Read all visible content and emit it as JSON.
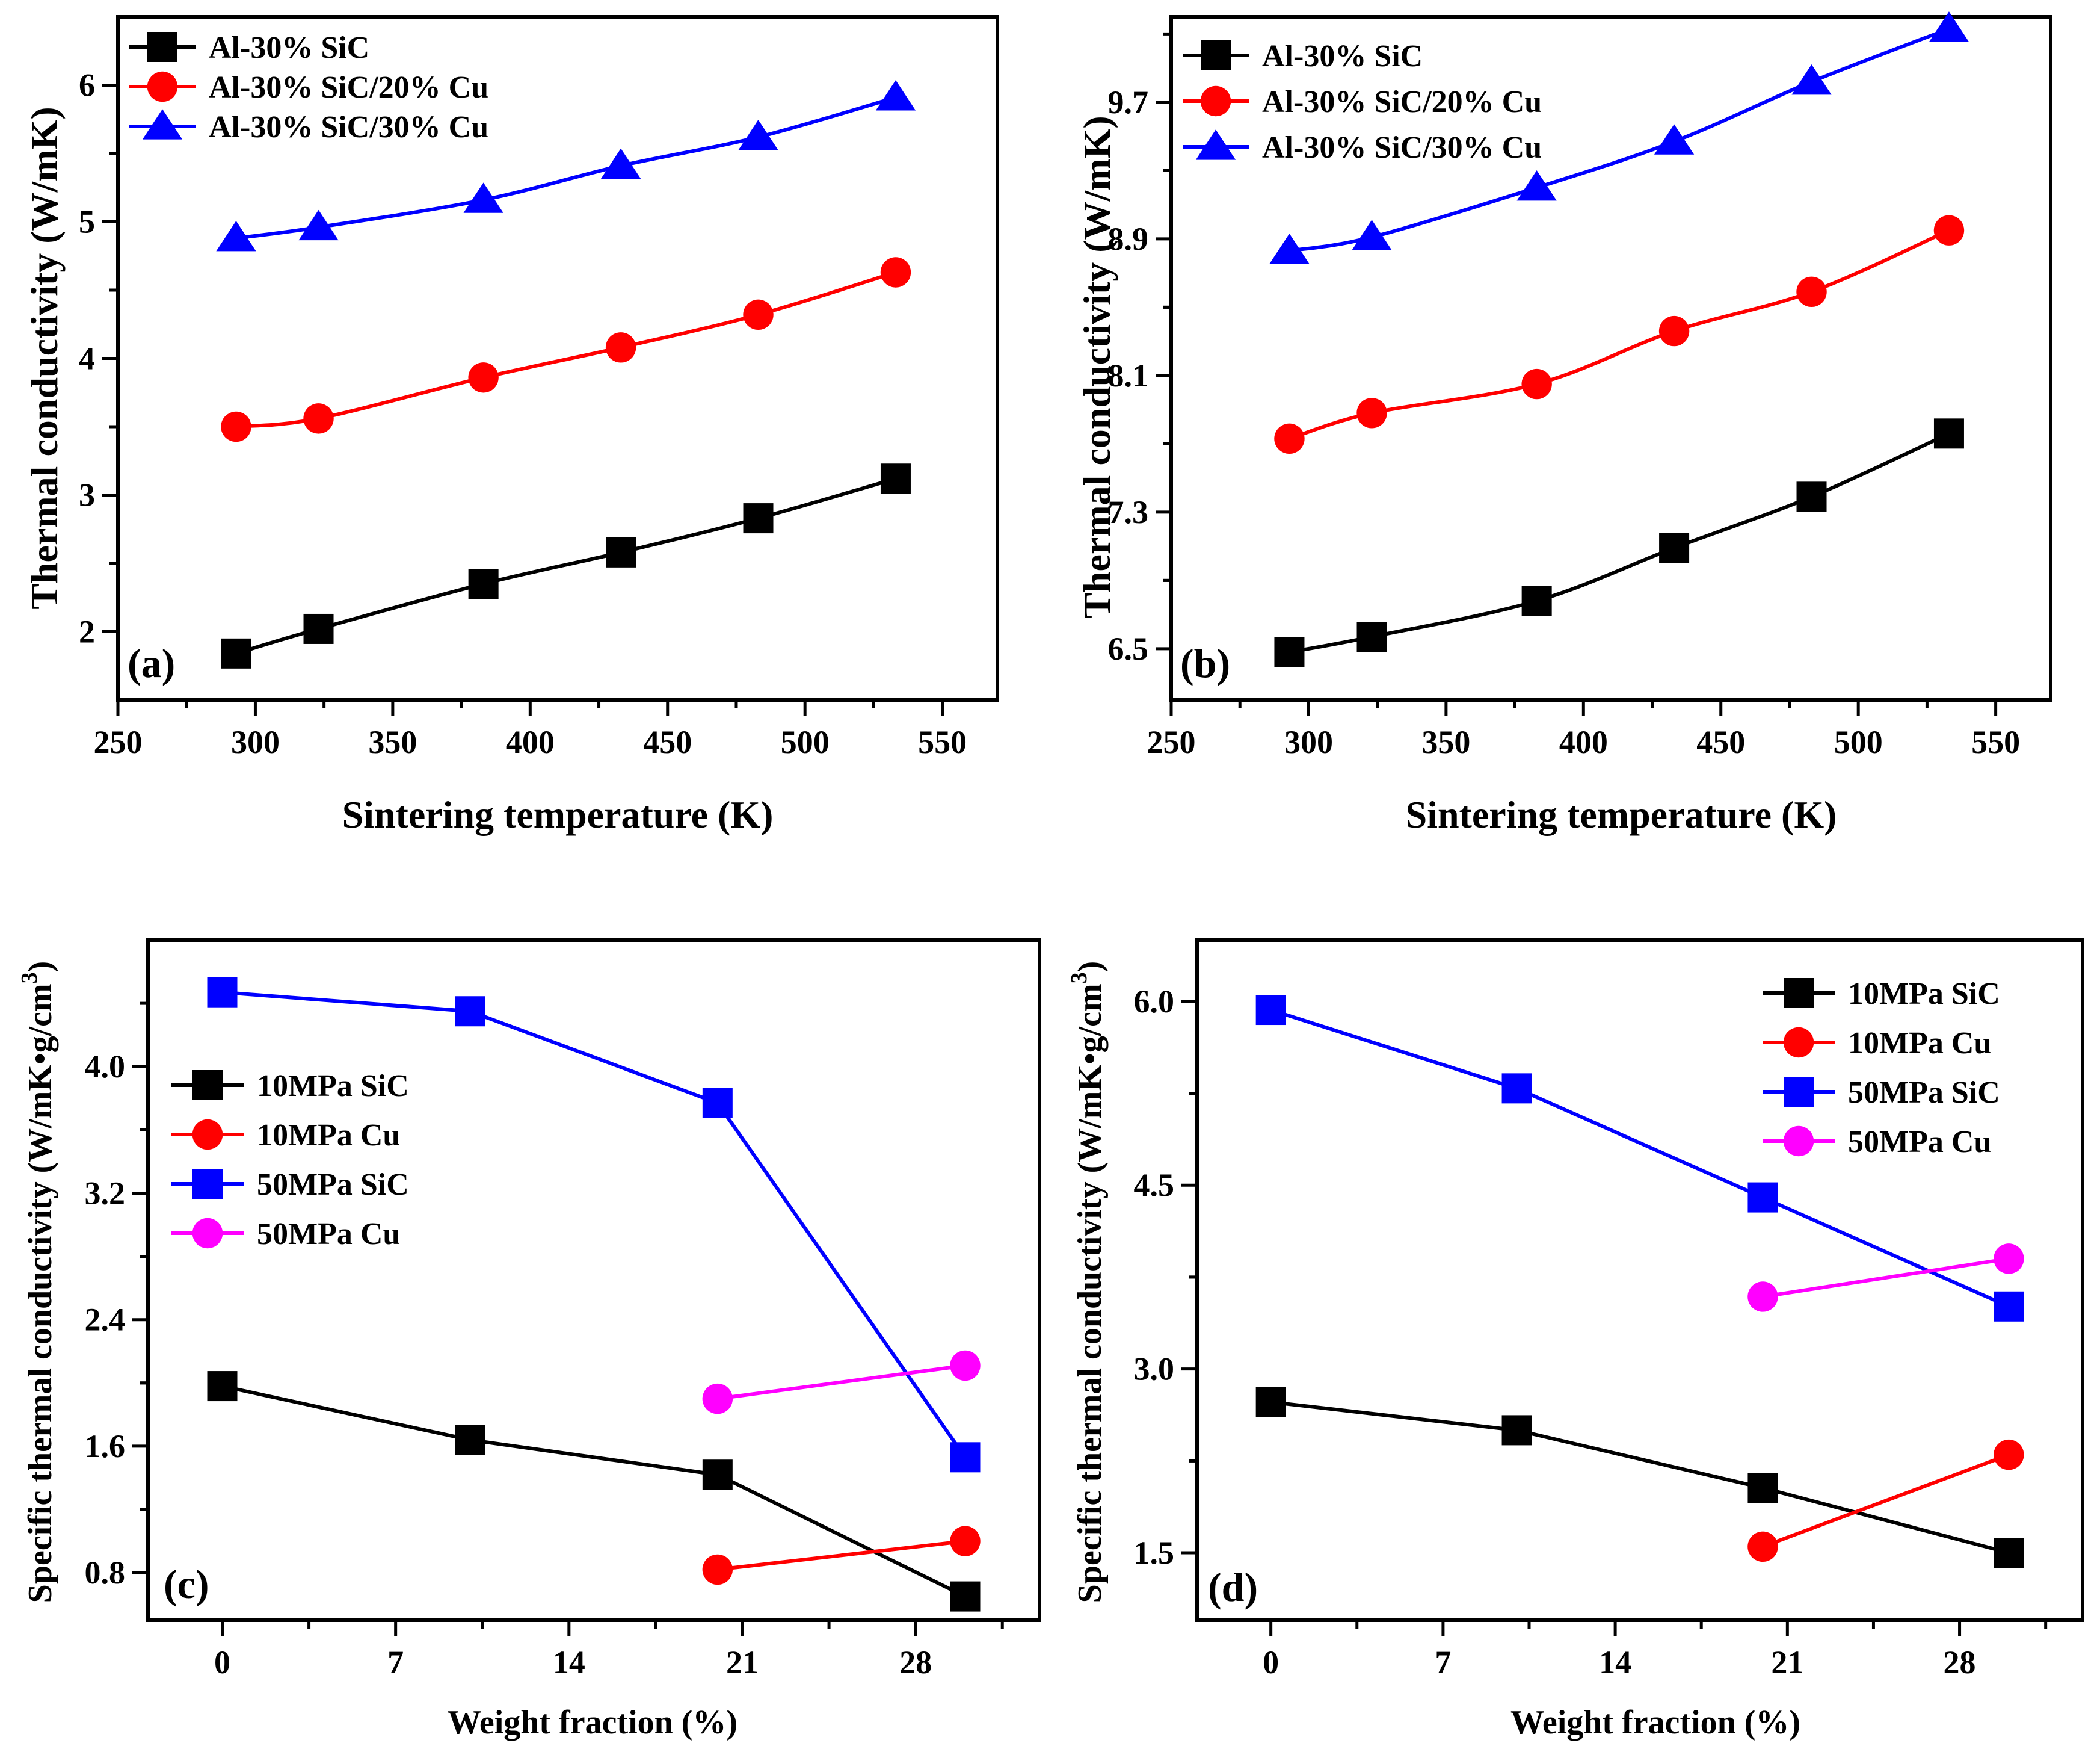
{
  "chart_data": [
    {
      "panel": "(a)",
      "type": "line",
      "xlabel": "Sintering temperature (K)",
      "ylabel": "Thermal conductivity (W/mK)",
      "xlim": [
        250,
        570
      ],
      "ylim": [
        1.5,
        6.5
      ],
      "xticks": [
        250,
        300,
        350,
        400,
        450,
        500,
        550
      ],
      "yticks": [
        2,
        3,
        4,
        5,
        6
      ],
      "ytick_labels": [
        "2",
        "3",
        "4",
        "5",
        "6"
      ],
      "legend_position": "top-left",
      "series": [
        {
          "name": "Al-30% SiC",
          "color": "#000000",
          "marker": "square",
          "x": [
            293,
            323,
            383,
            433,
            483,
            533
          ],
          "values": [
            1.84,
            2.02,
            2.35,
            2.58,
            2.83,
            3.12
          ]
        },
        {
          "name": "Al-30% SiC/20% Cu",
          "color": "#ff0000",
          "marker": "circle",
          "x": [
            293,
            323,
            383,
            433,
            483,
            533
          ],
          "values": [
            3.5,
            3.56,
            3.86,
            4.08,
            4.32,
            4.63
          ]
        },
        {
          "name": "Al-30% SiC/30% Cu",
          "color": "#0000ff",
          "marker": "triangle",
          "x": [
            293,
            323,
            383,
            433,
            483,
            533
          ],
          "values": [
            4.88,
            4.96,
            5.16,
            5.41,
            5.62,
            5.91
          ]
        }
      ]
    },
    {
      "panel": "(b)",
      "type": "line",
      "xlabel": "Sintering temperature (K)",
      "ylabel": "Thermal conductivity (W/mK)",
      "xlim": [
        250,
        570
      ],
      "ylim": [
        6.2,
        10.2
      ],
      "xticks": [
        250,
        300,
        350,
        400,
        450,
        500,
        550
      ],
      "yticks": [
        6.5,
        7.3,
        8.1,
        8.9,
        9.7
      ],
      "ytick_labels": [
        "6.5",
        "7.3",
        "8.1",
        "8.9",
        "9.7"
      ],
      "legend_position": "top-left",
      "series": [
        {
          "name": "Al-30% SiC",
          "color": "#000000",
          "marker": "square",
          "x": [
            293,
            323,
            383,
            433,
            483,
            533
          ],
          "values": [
            6.48,
            6.57,
            6.78,
            7.09,
            7.39,
            7.76
          ]
        },
        {
          "name": "Al-30% SiC/20% Cu",
          "color": "#ff0000",
          "marker": "circle",
          "x": [
            293,
            323,
            383,
            433,
            483,
            533
          ],
          "values": [
            7.73,
            7.88,
            8.05,
            8.36,
            8.59,
            8.95
          ]
        },
        {
          "name": "Al-30% SiC/30% Cu",
          "color": "#0000ff",
          "marker": "triangle",
          "x": [
            293,
            323,
            383,
            433,
            483,
            533
          ],
          "values": [
            8.83,
            8.91,
            9.2,
            9.47,
            9.82,
            10.13
          ]
        }
      ]
    },
    {
      "panel": "(c)",
      "type": "line",
      "xlabel": "Weight fraction (%)",
      "ylabel": "Specific thermal conductivity (W/mK•g/cm",
      "ylabel_sup": "3",
      "ylabel_end": ")",
      "xlim": [
        -3,
        33
      ],
      "ylim": [
        0.5,
        4.8
      ],
      "xticks": [
        0,
        7,
        14,
        21,
        28
      ],
      "yticks": [
        0.8,
        1.6,
        2.4,
        3.2,
        4.0
      ],
      "ytick_labels": [
        "0.8",
        "1.6",
        "2.4",
        "3.2",
        "4.0"
      ],
      "legend_position": "upper-left",
      "series": [
        {
          "name": "10MPa SiC",
          "color": "#000000",
          "marker": "square",
          "x": [
            0,
            10,
            20,
            30
          ],
          "values": [
            1.98,
            1.64,
            1.42,
            0.65
          ]
        },
        {
          "name": "10MPa Cu",
          "color": "#ff0000",
          "marker": "circle",
          "x": [
            20,
            30
          ],
          "values": [
            0.82,
            1.0
          ]
        },
        {
          "name": "50MPa SiC",
          "color": "#0000ff",
          "marker": "square",
          "x": [
            0,
            10,
            20,
            30
          ],
          "values": [
            4.47,
            4.35,
            3.77,
            1.53
          ]
        },
        {
          "name": "50MPa Cu",
          "color": "#ff00ff",
          "marker": "circle",
          "x": [
            20,
            30
          ],
          "values": [
            1.9,
            2.11
          ]
        }
      ]
    },
    {
      "panel": "(d)",
      "type": "line",
      "xlabel": "Weight fraction (%)",
      "ylabel": "Specific thermal conductivity (W/mK•g/cm",
      "ylabel_sup": "3",
      "ylabel_end": ")",
      "xlim": [
        -3,
        33
      ],
      "ylim": [
        0.95,
        6.5
      ],
      "xticks": [
        0,
        7,
        14,
        21,
        28
      ],
      "yticks": [
        1.5,
        3.0,
        4.5,
        6.0
      ],
      "ytick_labels": [
        "1.5",
        "3.0",
        "4.5",
        "6.0"
      ],
      "legend_position": "top-right",
      "series": [
        {
          "name": "10MPa SiC",
          "color": "#000000",
          "marker": "square",
          "x": [
            0,
            10,
            20,
            30
          ],
          "values": [
            2.73,
            2.5,
            2.03,
            1.5
          ]
        },
        {
          "name": "10MPa Cu",
          "color": "#ff0000",
          "marker": "circle",
          "x": [
            20,
            30
          ],
          "values": [
            1.55,
            2.3
          ]
        },
        {
          "name": "50MPa SiC",
          "color": "#0000ff",
          "marker": "square",
          "x": [
            0,
            10,
            20,
            30
          ],
          "values": [
            5.93,
            5.29,
            4.4,
            3.51
          ]
        },
        {
          "name": "50MPa Cu",
          "color": "#ff00ff",
          "marker": "circle",
          "x": [
            20,
            30
          ],
          "values": [
            3.59,
            3.9
          ]
        }
      ]
    }
  ]
}
